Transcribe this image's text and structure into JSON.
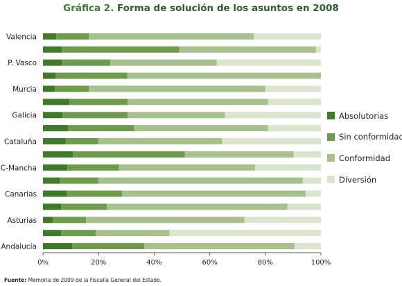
{
  "title": {
    "prefix": "Gráfica 2.",
    "text": "Forma de solución de los asuntos en 2008"
  },
  "source": {
    "label": "Fuente:",
    "text": "Memoria de 2009 de la Fiscalía General del Estado."
  },
  "legend": [
    {
      "label": "Absolutorias",
      "color": "#3f7a2a"
    },
    {
      "label": "Sin conformidad",
      "color": "#6e9b4c"
    },
    {
      "label": "Conformidad",
      "color": "#a8c08e"
    },
    {
      "label": "Diversión",
      "color": "#d9e5cc"
    }
  ],
  "chart_data": {
    "type": "bar",
    "orientation": "horizontal",
    "stacked": true,
    "percent": true,
    "categories": [
      "Valencia",
      "",
      "P. Vasco",
      "",
      "Murcia",
      "",
      "Galicia",
      "",
      "Cataluña",
      "",
      "C-Mancha",
      "",
      "Canarias",
      "",
      "Asturias",
      "",
      "Andalucía"
    ],
    "series": [
      {
        "name": "Absolutorias",
        "values": [
          4.8,
          6.8,
          6.8,
          4.5,
          4.3,
          9.5,
          7.0,
          9.0,
          8.2,
          10.8,
          8.8,
          6.0,
          8.5,
          6.5,
          3.5,
          6.5,
          10.5
        ]
      },
      {
        "name": "Sin conformidad",
        "values": [
          11.7,
          42.2,
          17.4,
          25.8,
          12.2,
          21.0,
          23.5,
          23.8,
          11.8,
          40.2,
          18.5,
          14.0,
          20.0,
          16.5,
          12.0,
          12.5,
          26.0
        ]
      },
      {
        "name": "Conformidad",
        "values": [
          59.4,
          49.2,
          38.3,
          69.7,
          63.5,
          50.5,
          35.0,
          48.2,
          44.5,
          39.2,
          49.0,
          73.5,
          66.0,
          65.0,
          57.0,
          26.5,
          54.0
        ]
      },
      {
        "name": "Diversión",
        "values": [
          24.1,
          1.8,
          37.5,
          0.0,
          20.0,
          19.0,
          34.5,
          19.0,
          35.5,
          9.8,
          23.7,
          6.5,
          5.5,
          12.0,
          27.5,
          54.5,
          9.5
        ]
      }
    ],
    "xlim": [
      0,
      100
    ],
    "x_ticks": [
      "0%",
      "20%",
      "40%",
      "60%",
      "80%",
      "100%"
    ],
    "xlabel": "",
    "ylabel": "",
    "legend_position": "right",
    "grid": false
  }
}
